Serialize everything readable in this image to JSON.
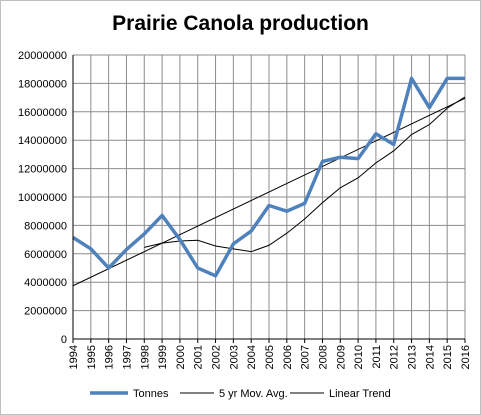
{
  "chart_data": {
    "type": "line",
    "title": "Prairie Canola production",
    "xlabel": "",
    "ylabel": "",
    "categories": [
      "1994",
      "1995",
      "1996",
      "1997",
      "1998",
      "1999",
      "2000",
      "2001",
      "2002",
      "2003",
      "2004",
      "2005",
      "2006",
      "2007",
      "2008",
      "2009",
      "2010",
      "2011",
      "2012",
      "2013",
      "2014",
      "2015",
      "2016"
    ],
    "ylim": [
      0,
      20000000
    ],
    "yticks": [
      0,
      2000000,
      4000000,
      6000000,
      8000000,
      10000000,
      12000000,
      14000000,
      16000000,
      18000000,
      20000000
    ],
    "grid": true,
    "legend": "bottom",
    "series": [
      {
        "name": "Tonnes",
        "color": "#4f81bd",
        "values": [
          7150000,
          6350000,
          5000000,
          6300000,
          7400000,
          8700000,
          7000000,
          5000000,
          4450000,
          6700000,
          7600000,
          9400000,
          9000000,
          9550000,
          12500000,
          12800000,
          12700000,
          14450000,
          13700000,
          18350000,
          16300000,
          18350000,
          18350000
        ]
      },
      {
        "name": "5 yr Mov. Avg.",
        "color": "#000000",
        "values": [
          null,
          null,
          null,
          null,
          6450000,
          6750000,
          6900000,
          6950000,
          6550000,
          6350000,
          6150000,
          6600000,
          7450000,
          8450000,
          9600000,
          10650000,
          11350000,
          12400000,
          13250000,
          14400000,
          15100000,
          16250000,
          17050000
        ]
      },
      {
        "name": "Linear Trend",
        "color": "#000000",
        "start": 3750000,
        "end": 16950000
      }
    ]
  }
}
